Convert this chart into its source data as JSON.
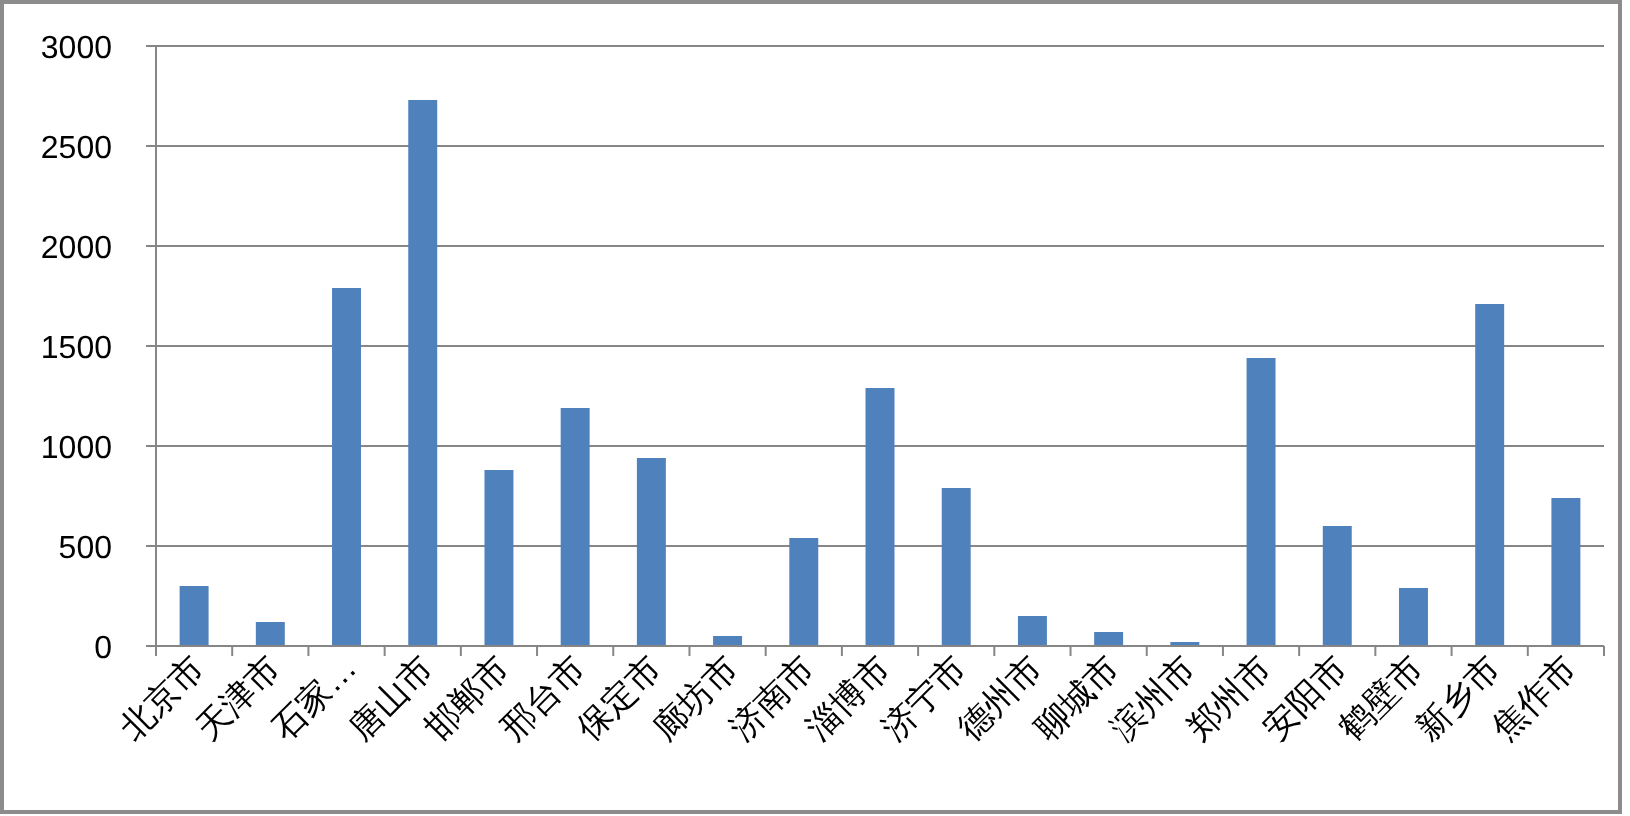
{
  "chart_data": {
    "type": "bar",
    "categories": [
      "北京市",
      "天津市",
      "石家…",
      "唐山市",
      "邯郸市",
      "邢台市",
      "保定市",
      "廊坊市",
      "济南市",
      "淄博市",
      "济宁市",
      "德州市",
      "聊城市",
      "滨州市",
      "郑州市",
      "安阳市",
      "鹤壁市",
      "新乡市",
      "焦作市"
    ],
    "values": [
      300,
      120,
      1790,
      2730,
      880,
      1190,
      940,
      50,
      540,
      1290,
      790,
      150,
      70,
      20,
      1440,
      600,
      290,
      1710,
      740
    ],
    "color": "#4f81bd",
    "ylim": [
      0,
      3000
    ],
    "yticks": [
      0,
      500,
      1000,
      1500,
      2000,
      2500,
      3000
    ],
    "grid": "y"
  }
}
